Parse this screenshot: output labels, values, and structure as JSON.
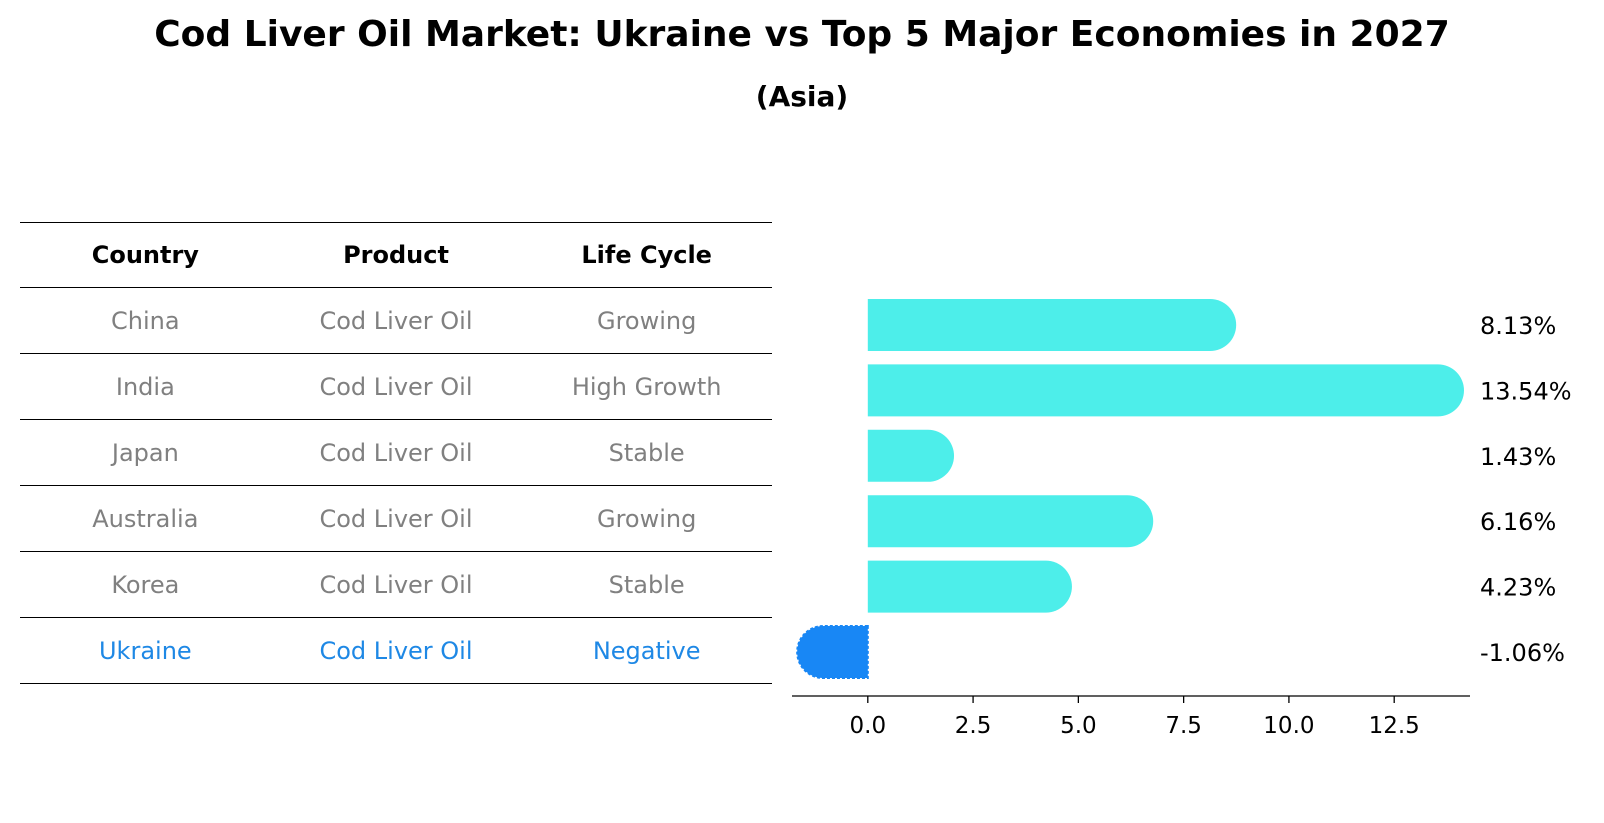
{
  "title": "Cod Liver Oil Market: Ukraine vs Top 5 Major Economies in 2027",
  "subtitle": "(Asia)",
  "table": {
    "headers": [
      "Country",
      "Product",
      "Life Cycle"
    ],
    "rows": [
      [
        "China",
        "Cod Liver Oil",
        "Growing"
      ],
      [
        "India",
        "Cod Liver Oil",
        "High Growth"
      ],
      [
        "Japan",
        "Cod Liver Oil",
        "Stable"
      ],
      [
        "Australia",
        "Cod Liver Oil",
        "Growing"
      ],
      [
        "Korea",
        "Cod Liver Oil",
        "Stable"
      ],
      [
        "Ukraine",
        "Cod Liver Oil",
        "Negative"
      ]
    ]
  },
  "chart_data": {
    "type": "bar",
    "orientation": "horizontal",
    "categories": [
      "China",
      "India",
      "Japan",
      "Australia",
      "Korea",
      "Ukraine"
    ],
    "values": [
      8.13,
      13.54,
      1.43,
      6.16,
      4.23,
      -1.06
    ],
    "value_labels": [
      "8.13%",
      "13.54%",
      "1.43%",
      "6.16%",
      "4.23%",
      "-1.06%"
    ],
    "xlim": [
      -1.8,
      14.3
    ],
    "xticks": [
      0.0,
      2.5,
      5.0,
      7.5,
      10.0,
      12.5
    ],
    "xtick_labels": [
      "0.0",
      "2.5",
      "5.0",
      "7.5",
      "10.0",
      "12.5"
    ],
    "highlight": "Ukraine",
    "colors": {
      "default": "#4deeea",
      "highlight": "#1887f5",
      "text": "#000000",
      "muted": "#808080",
      "highlight_text": "#1e88e5"
    }
  }
}
